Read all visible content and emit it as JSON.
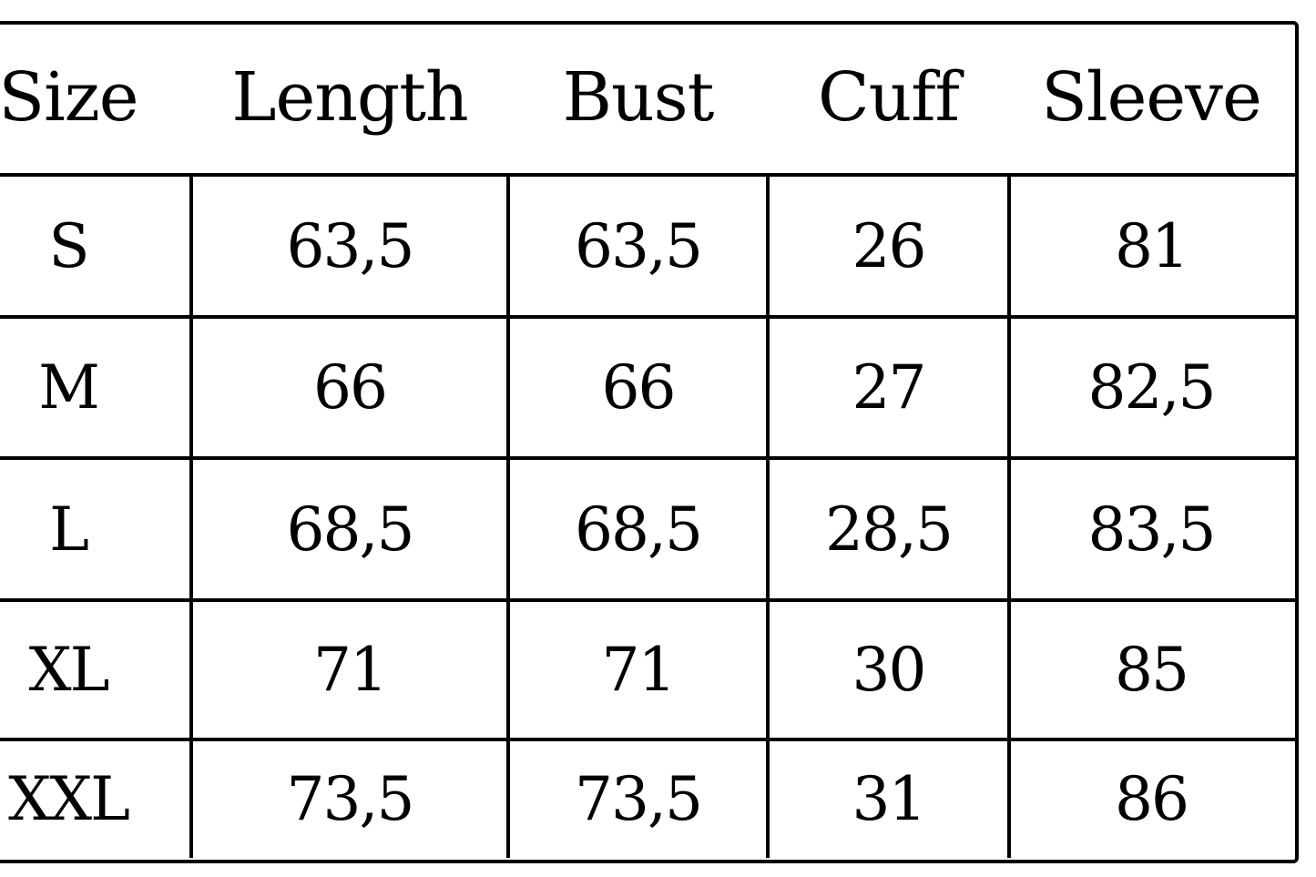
{
  "table": {
    "headers": [
      "Size",
      "Length",
      "Bust",
      "Cuff",
      "Sleeve"
    ],
    "rows": [
      [
        "S",
        "63,5",
        "63,5",
        "26",
        "81"
      ],
      [
        "M",
        "66",
        "66",
        "27",
        "82,5"
      ],
      [
        "L",
        "68,5",
        "68,5",
        "28,5",
        "83,5"
      ],
      [
        "XL",
        "71",
        "71",
        "30",
        "85"
      ],
      [
        "XXL",
        "73,5",
        "73,5",
        "31",
        "86"
      ]
    ]
  }
}
